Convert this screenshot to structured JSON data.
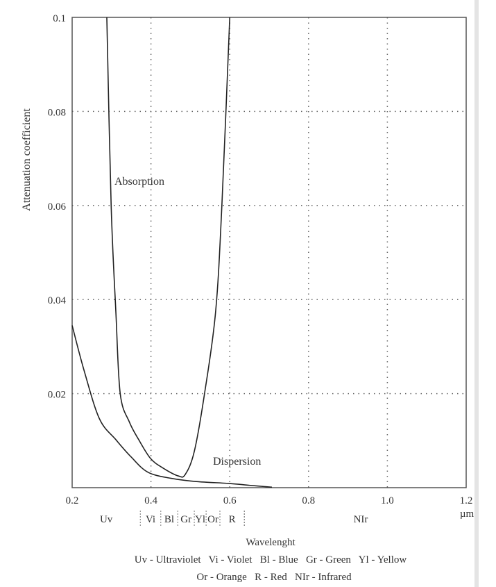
{
  "chart_data": {
    "type": "line",
    "title": "",
    "xlabel": "Wavelenght",
    "ylabel": "Attenuation coefficient",
    "x_unit": "µm",
    "xlim": [
      0.2,
      1.2
    ],
    "ylim": [
      0,
      0.1
    ],
    "grid": true,
    "x_ticks": [
      "0.2",
      "0.4",
      "0.6",
      "0.8",
      "1.0",
      "1.2"
    ],
    "y_ticks": [
      "0.02",
      "0.04",
      "0.06",
      "0.08",
      "0.1"
    ],
    "series": [
      {
        "name": "Absorption",
        "x": [
          0.288,
          0.299,
          0.311,
          0.322,
          0.345,
          0.369,
          0.399,
          0.43,
          0.469,
          0.487,
          0.51,
          0.536,
          0.564,
          0.58,
          0.6
        ],
        "y": [
          0.1,
          0.06,
          0.0373,
          0.02,
          0.014,
          0.0102,
          0.0062,
          0.0042,
          0.0025,
          0.0028,
          0.0077,
          0.02,
          0.0373,
          0.06,
          0.1
        ]
      },
      {
        "name": "Dispersion",
        "x": [
          0.2,
          0.23,
          0.269,
          0.311,
          0.35,
          0.392,
          0.45,
          0.515,
          0.598,
          0.65,
          0.707
        ],
        "y": [
          0.0345,
          0.025,
          0.0147,
          0.0102,
          0.0065,
          0.0033,
          0.002,
          0.0013,
          0.0009,
          0.0005,
          0.0001
        ]
      }
    ],
    "bands": [
      {
        "label": "Uv",
        "from": 0.2,
        "to": 0.373
      },
      {
        "label": "Vi",
        "from": 0.373,
        "to": 0.425
      },
      {
        "label": "Bl",
        "from": 0.425,
        "to": 0.468
      },
      {
        "label": "Gr",
        "from": 0.468,
        "to": 0.51
      },
      {
        "label": "Yl",
        "from": 0.51,
        "to": 0.54
      },
      {
        "label": "Or",
        "from": 0.54,
        "to": 0.575
      },
      {
        "label": "R",
        "from": 0.575,
        "to": 0.637
      },
      {
        "label": "NIr",
        "from": 0.637,
        "to": 1.2
      }
    ],
    "legend": [
      "Uv - Ultraviolet   Vi - Violet   Bl - Blue   Gr - Green   Yl - Yellow",
      "Or - Orange   R - Red   NIr - Infrared"
    ]
  }
}
